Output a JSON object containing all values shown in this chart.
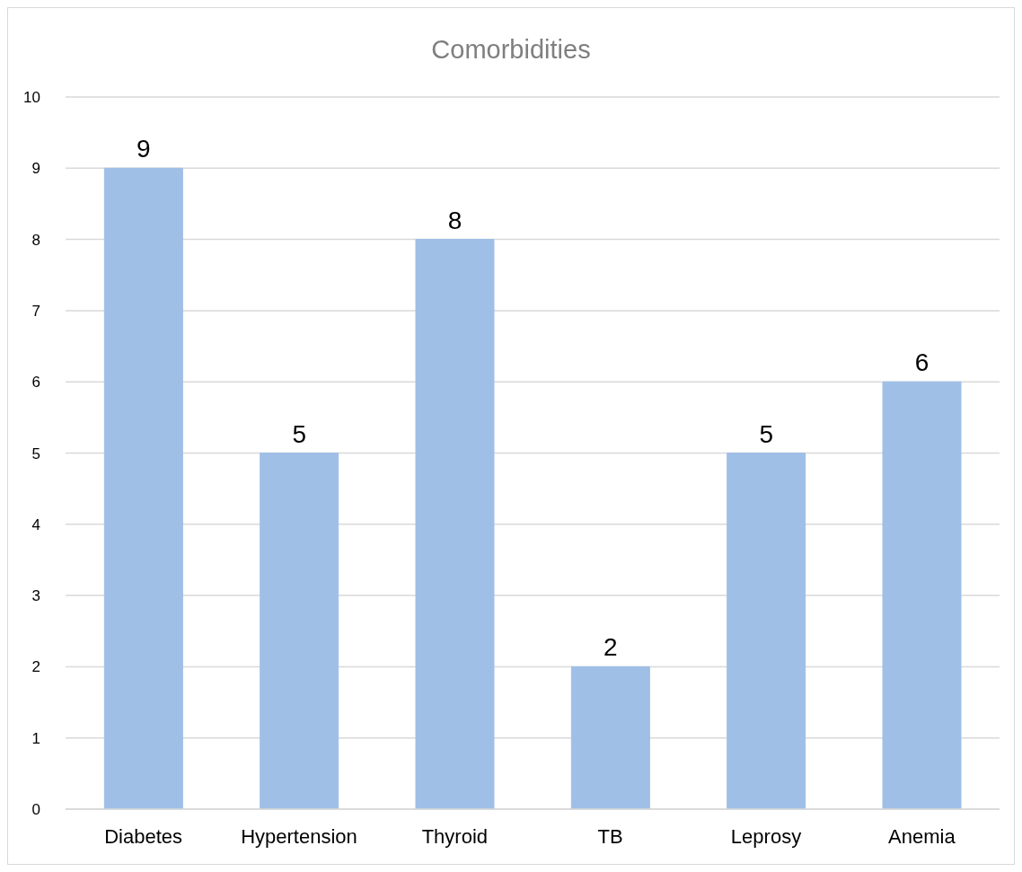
{
  "chart_data": {
    "type": "bar",
    "title": "Comorbidities",
    "categories": [
      "Diabetes",
      "Hypertension",
      "Thyroid",
      "TB",
      "Leprosy",
      "Anemia"
    ],
    "values": [
      9,
      5,
      8,
      2,
      5,
      6
    ],
    "color": "#9fbfe6",
    "ylim": [
      0,
      10
    ],
    "yticks": [
      0,
      1,
      2,
      3,
      4,
      5,
      6,
      7,
      8,
      9,
      10
    ],
    "grid": "y",
    "data_labels": true
  }
}
